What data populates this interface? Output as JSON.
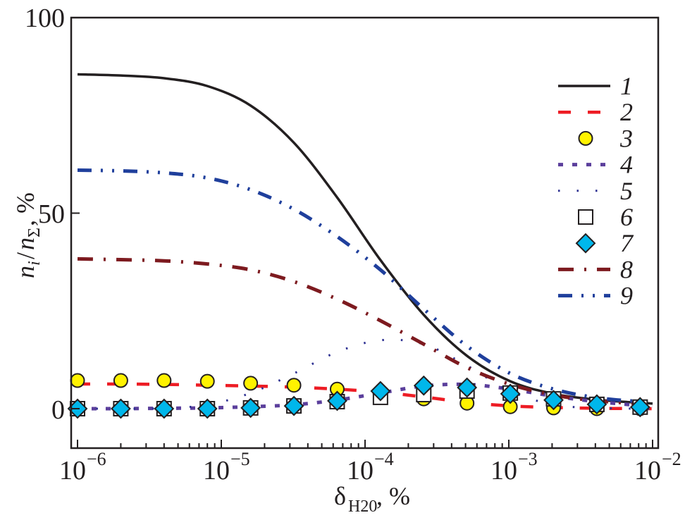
{
  "chart_data": {
    "type": "line",
    "title": "",
    "xlabel": {
      "main": "δ",
      "sub": "H20",
      "suffix": ", %"
    },
    "ylabel": {
      "n1": "n",
      "sub1": "i",
      "slash": "/",
      "n2": "n",
      "sub2": "Σ",
      "suffix": ", %"
    },
    "xscale": "log",
    "xlim": [
      9e-07,
      0.011
    ],
    "ylim": [
      -10,
      100
    ],
    "grid": false,
    "legend_position": "top-right",
    "x_ticks": [
      {
        "base": "10",
        "exp": "−6",
        "value": 1e-06
      },
      {
        "base": "10",
        "exp": "−5",
        "value": 1e-05
      },
      {
        "base": "10",
        "exp": "−4",
        "value": 0.0001
      },
      {
        "base": "10",
        "exp": "−3",
        "value": 0.001
      },
      {
        "base": "10",
        "exp": "−2",
        "value": 0.01
      }
    ],
    "y_ticks": [
      {
        "label": "0",
        "value": 0
      },
      {
        "label": "50",
        "value": 50
      },
      {
        "label": "100",
        "value": 100
      }
    ],
    "x": [
      1e-06,
      2e-06,
      4e-06,
      8e-06,
      1.6e-05,
      3.2e-05,
      6.4e-05,
      0.000128,
      0.000256,
      0.000512,
      0.001024,
      0.002048,
      0.004096,
      0.008192,
      0.01
    ],
    "series": [
      {
        "name": "1",
        "style": "solid",
        "color": "#231f20",
        "values": [
          85.5,
          85.2,
          84.5,
          82.5,
          77.5,
          68,
          54,
          38,
          24,
          13.5,
          7,
          3.8,
          2.3,
          1.5,
          1.3
        ]
      },
      {
        "name": "2",
        "style": "dashed",
        "color": "#ed1c24",
        "values": [
          6.3,
          6.3,
          6.2,
          6.0,
          5.8,
          5.5,
          5.0,
          4.2,
          3.0,
          1.6,
          0.7,
          0.3,
          0.1,
          0.0,
          0.0
        ]
      },
      {
        "name": "3",
        "style": "marker-circle",
        "color": "#fff200",
        "values": [
          7.2,
          7.2,
          7.2,
          7.0,
          6.5,
          6.0,
          5.0,
          4.1,
          2.5,
          1.4,
          0.5,
          0.2,
          0.0,
          0.0,
          null
        ]
      },
      {
        "name": "4",
        "style": "dotted-square",
        "color": "#5b3f9c",
        "values": [
          0.0,
          0.0,
          0.1,
          0.2,
          0.5,
          1.0,
          2.2,
          4.0,
          5.8,
          6.2,
          5.0,
          3.2,
          1.8,
          0.8,
          0.6
        ]
      },
      {
        "name": "5",
        "style": "dotted",
        "color": "#2e3192",
        "values": [
          0.0,
          0.0,
          0.1,
          1.0,
          4.0,
          9.0,
          14.5,
          17.5,
          16.5,
          11.0,
          4.5,
          1.0,
          0.2,
          0.0,
          0.0
        ]
      },
      {
        "name": "6",
        "style": "marker-square",
        "color": "#ffffff",
        "values": [
          0.0,
          0.0,
          0.0,
          0.0,
          0.2,
          0.7,
          1.8,
          2.9,
          3.6,
          4.5,
          4.0,
          2.5,
          1.1,
          0.4,
          null
        ]
      },
      {
        "name": "7",
        "style": "marker-diamond",
        "color": "#00b7eb",
        "values": [
          0.0,
          0.0,
          0.0,
          0.0,
          0.2,
          0.7,
          2.0,
          4.5,
          5.9,
          5.4,
          3.8,
          2.2,
          1.1,
          0.4,
          null
        ]
      },
      {
        "name": "8",
        "style": "dash-dot",
        "color": "#7d1a1f",
        "values": [
          38.3,
          38.1,
          37.8,
          37.0,
          35.5,
          32.5,
          28.0,
          22.5,
          16.5,
          10.5,
          6.2,
          3.5,
          2.0,
          1.3,
          1.1
        ]
      },
      {
        "name": "9",
        "style": "dash-dot-dot",
        "color": "#1f3f9c",
        "values": [
          61.0,
          60.8,
          60.3,
          59.0,
          56.0,
          51.0,
          44.0,
          35.5,
          25.5,
          16.0,
          9.0,
          5.0,
          2.8,
          1.8,
          1.5
        ]
      }
    ]
  }
}
